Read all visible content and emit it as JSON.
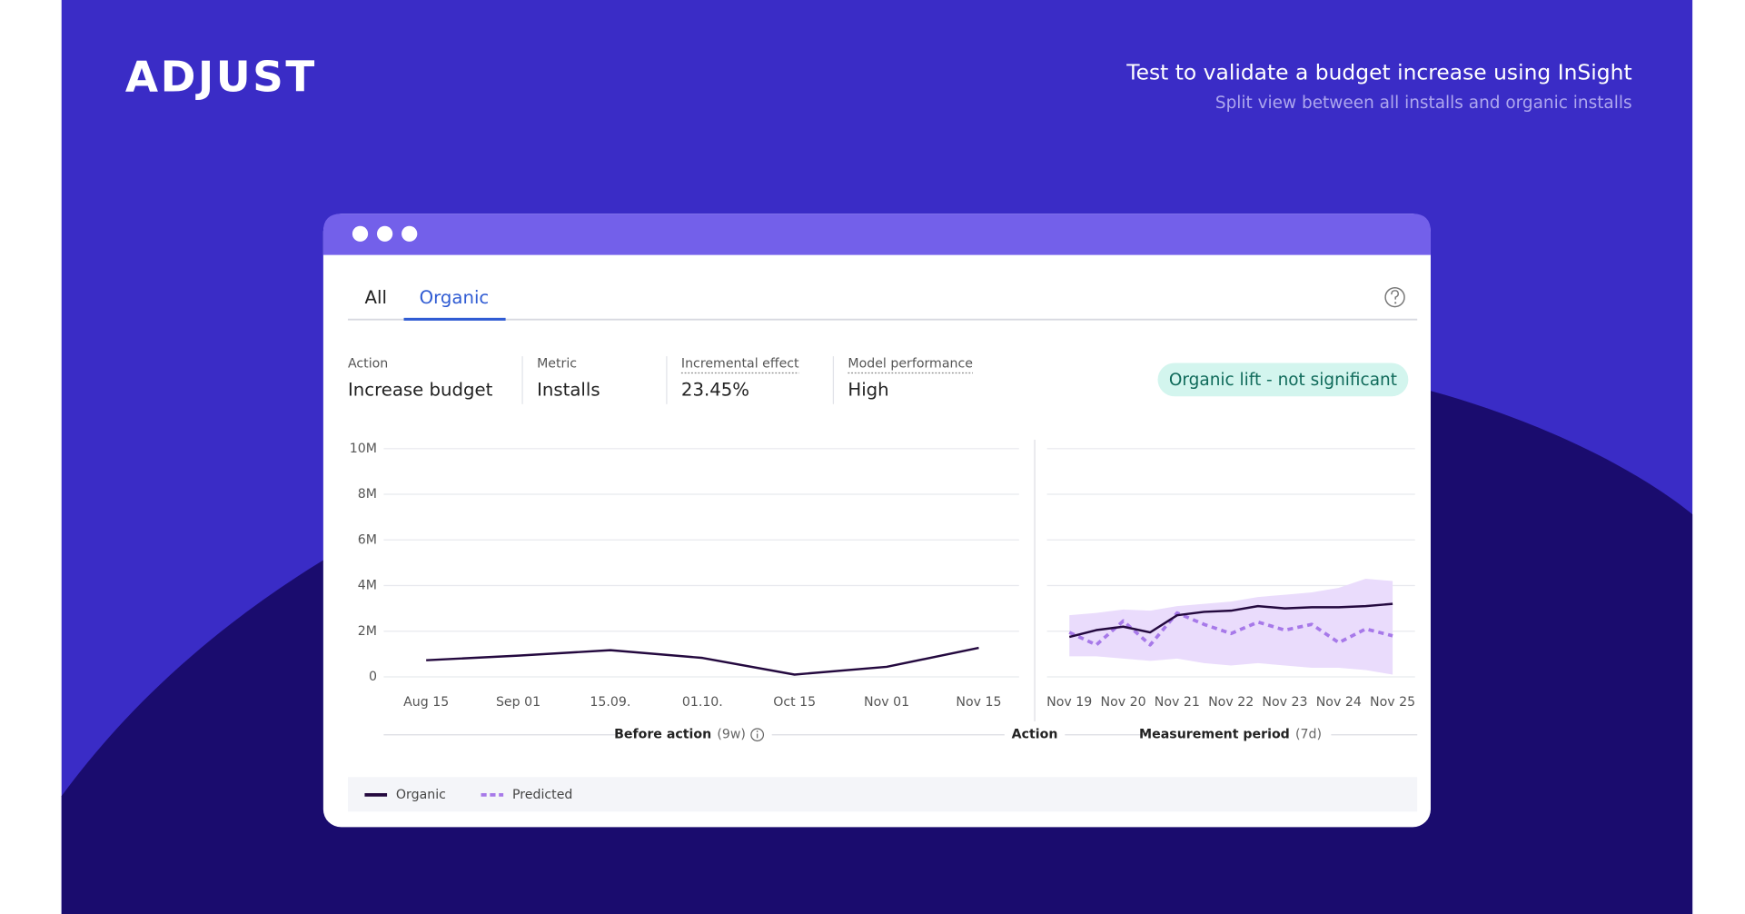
{
  "header": {
    "logo": "ADJUST",
    "title": "Test to validate a budget increase using InSight",
    "subtitle": "Split view between all installs and organic installs"
  },
  "tabs": [
    "All",
    "Organic"
  ],
  "active_tab": 1,
  "stats": [
    {
      "label": "Action",
      "value": "Increase budget"
    },
    {
      "label": "Metric",
      "value": "Installs"
    },
    {
      "label": "Incremental effect",
      "value": "23.45%",
      "underlined": true
    },
    {
      "label": "Model performance",
      "value": "High",
      "underlined": true
    }
  ],
  "badge": "Organic lift - not significant",
  "sections": [
    {
      "label": "Before action",
      "note": "(9w)"
    },
    {
      "label": "Action"
    },
    {
      "label": "Measurement period",
      "note": "(7d)"
    }
  ],
  "chart_data": [
    {
      "type": "line",
      "categories": [
        "Aug 15",
        "Sep 01",
        "15.09.",
        "01.10.",
        "Oct 15",
        "Nov 01",
        "Nov 15"
      ],
      "series": [
        {
          "name": "Organic",
          "color": "#24093f",
          "values": [
            730000,
            930000,
            1170000,
            830000,
            100000,
            440000,
            1270000
          ]
        }
      ],
      "ylim": [
        0,
        10000000
      ],
      "yticks": [
        0,
        {
          "value": 2000000,
          "label": "2M"
        },
        {
          "value": 4000000,
          "label": "4M"
        },
        {
          "value": 6000000,
          "label": "6M"
        },
        {
          "value": 8000000,
          "label": "8M"
        },
        {
          "value": 10000000,
          "label": "10M"
        }
      ],
      "grid": true
    },
    {
      "type": "line",
      "categories": [
        "Nov 19",
        null,
        "Nov 20",
        null,
        "Nov 21",
        null,
        "Nov 22",
        null,
        "Nov 23",
        null,
        "Nov 24",
        null,
        "Nov 25"
      ],
      "series": [
        {
          "name": "Organic",
          "color": "#24093f",
          "values": [
            1750000,
            2050000,
            2200000,
            1950000,
            2700000,
            2850000,
            2900000,
            3100000,
            3000000,
            3050000,
            3050000,
            3100000,
            3200000
          ]
        },
        {
          "name": "Predicted",
          "color": "#a779e9",
          "dashed": true,
          "values": [
            1950000,
            1400000,
            2450000,
            1400000,
            2800000,
            2300000,
            1900000,
            2400000,
            2050000,
            2300000,
            1500000,
            2100000,
            1800000
          ]
        }
      ],
      "band": {
        "color": "#eadcfc",
        "upper": [
          2700000,
          2800000,
          2950000,
          2900000,
          3100000,
          3200000,
          3300000,
          3500000,
          3600000,
          3700000,
          3900000,
          4300000,
          4200000
        ],
        "lower": [
          900000,
          900000,
          800000,
          700000,
          800000,
          600000,
          500000,
          600000,
          500000,
          400000,
          400000,
          300000,
          100000
        ]
      },
      "ylim": [
        0,
        10000000
      ],
      "yticks": [
        0,
        2000000,
        4000000,
        6000000,
        8000000,
        10000000
      ],
      "ytick_labels": false,
      "grid": true
    }
  ]
}
